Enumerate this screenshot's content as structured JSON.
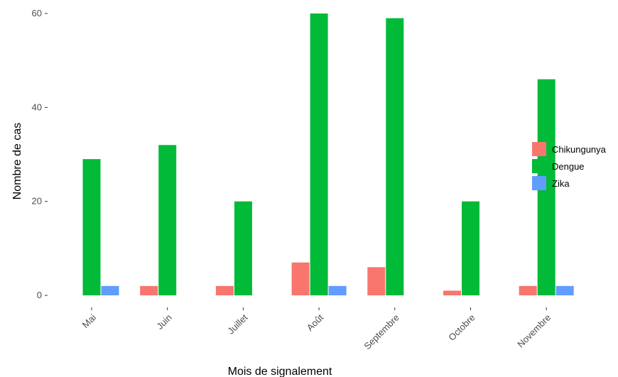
{
  "chart_data": {
    "type": "bar",
    "categories": [
      "Mai",
      "Juin",
      "Juillet",
      "Août",
      "Septembre",
      "Octobre",
      "Novembre"
    ],
    "series": [
      {
        "name": "Chikungunya",
        "color": "#F8766D",
        "values": [
          0,
          2,
          2,
          7,
          6,
          1,
          2
        ]
      },
      {
        "name": "Dengue",
        "color": "#00BA38",
        "values": [
          29,
          32,
          20,
          60,
          59,
          20,
          46
        ]
      },
      {
        "name": "Zika",
        "color": "#619CFF",
        "values": [
          2,
          0,
          0,
          2,
          0,
          0,
          2
        ]
      }
    ],
    "xlabel": "Mois de signalement",
    "ylabel": "Nombre de cas",
    "ylim": [
      0,
      61
    ],
    "yticks": [
      0,
      20,
      40,
      60
    ],
    "ytick_labels": [
      "0",
      "20",
      "40",
      "60"
    ],
    "grid": false,
    "legend_position": "right",
    "x_tick_rotation": "45"
  }
}
